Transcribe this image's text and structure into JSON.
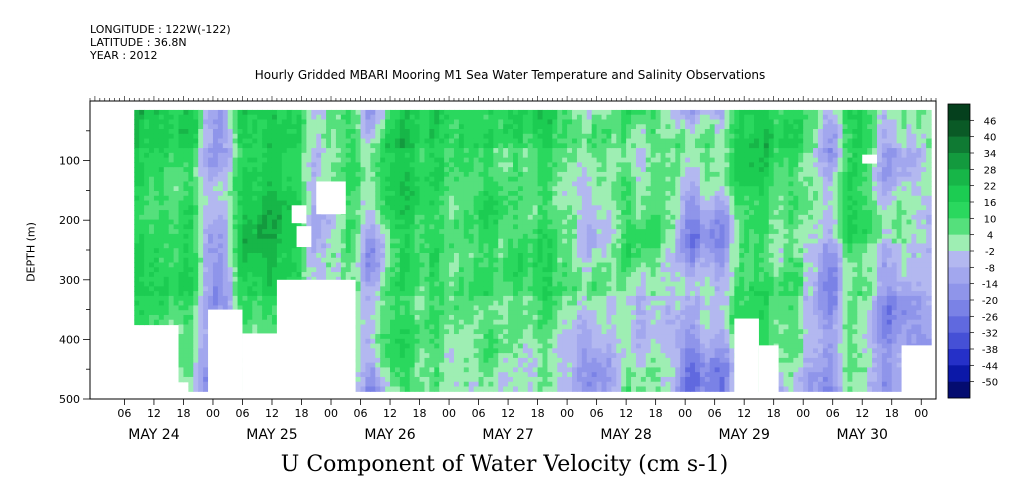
{
  "header": {
    "longitude": "LONGITUDE : 122W(-122)",
    "latitude": "LATITUDE : 36.8N",
    "year": "YEAR : 2012"
  },
  "chart_data": {
    "type": "heatmap",
    "title": "Hourly Gridded MBARI Mooring M1 Sea Water Temperature and Salinity Observations",
    "variable_label": "U Component of Water Velocity (cm s-1)",
    "ylabel": "DEPTH (m)",
    "y_axis": {
      "range": [
        500,
        0
      ],
      "reversed": true,
      "ticks": [
        100,
        200,
        300,
        400,
        500
      ]
    },
    "x_axis": {
      "start": "2012-05-23 23:00",
      "end": "2012-05-31 03:00",
      "hour_ticks": [
        "06",
        "12",
        "18",
        "00",
        "06",
        "12",
        "18",
        "00",
        "06",
        "12",
        "18",
        "00",
        "06",
        "12",
        "18",
        "00",
        "06",
        "12",
        "18",
        "00",
        "06",
        "12",
        "18",
        "00",
        "06",
        "12",
        "18",
        "00"
      ],
      "day_labels": [
        "MAY 24",
        "MAY 25",
        "MAY 26",
        "MAY 27",
        "MAY 28",
        "MAY 29",
        "MAY 30"
      ]
    },
    "colorbar": {
      "labels": [
        "46",
        "40",
        "34",
        "28",
        "22",
        "16",
        "10",
        "4",
        "-2",
        "-8",
        "-14",
        "-20",
        "-26",
        "-32",
        "-38",
        "-44",
        "-50"
      ],
      "colors": [
        "#05401d",
        "#0a5a26",
        "#0f7a33",
        "#139a3e",
        "#17b648",
        "#1ccc52",
        "#2ad85e",
        "#55e07c",
        "#9eeeb3",
        "#b3b8f0",
        "#a2a7ee",
        "#8f95ea",
        "#7a82e6",
        "#6069df",
        "#4550d6",
        "#2530c8",
        "#0b18a8",
        "#040c70"
      ]
    },
    "data_extent": {
      "time_start": "2012-05-24 08:00",
      "time_end": "2012-05-31 02:00",
      "depth_top": 15,
      "depth_bottom": 485
    },
    "gaps": [
      {
        "t0": 24,
        "t1": 31,
        "d0": 350,
        "d1": 500
      },
      {
        "t0": 31,
        "t1": 41,
        "d0": 390,
        "d1": 500
      },
      {
        "t0": 38,
        "t1": 54,
        "d0": 300,
        "d1": 500
      },
      {
        "t0": 46,
        "t1": 52,
        "d0": 135,
        "d1": 190
      },
      {
        "t0": 41,
        "t1": 44,
        "d0": 175,
        "d1": 205
      },
      {
        "t0": 42,
        "t1": 45,
        "d0": 210,
        "d1": 245
      },
      {
        "t0": 131,
        "t1": 136,
        "d0": 365,
        "d1": 490
      },
      {
        "t0": 136,
        "t1": 140,
        "d0": 410,
        "d1": 490
      },
      {
        "t0": 157,
        "t1": 160,
        "d0": 90,
        "d1": 105
      },
      {
        "t0": 165,
        "t1": 175,
        "d0": 410,
        "d1": 490
      }
    ],
    "blue_bands": [
      {
        "t": 26,
        "w": 3,
        "a": 0.85
      },
      {
        "t": 47,
        "w": 4,
        "a": 0.5
      },
      {
        "t": 58,
        "w": 3,
        "a": 0.9
      },
      {
        "t": 82,
        "w": 3,
        "a": 0.55
      },
      {
        "t": 103,
        "w": 4,
        "a": 0.85
      },
      {
        "t": 112,
        "w": 3,
        "a": 0.5
      },
      {
        "t": 122,
        "w": 3,
        "a": 1.0
      },
      {
        "t": 128,
        "w": 4,
        "a": 0.95
      },
      {
        "t": 151,
        "w": 4,
        "a": 1.0
      },
      {
        "t": 163,
        "w": 4,
        "a": 0.7
      },
      {
        "t": 172,
        "w": 3,
        "a": 0.7
      }
    ],
    "green_bands": [
      {
        "t": 35,
        "w": 4,
        "a": 0.9
      },
      {
        "t": 67,
        "w": 5,
        "a": 0.7
      },
      {
        "t": 79,
        "w": 4,
        "a": 0.55
      },
      {
        "t": 95,
        "w": 3,
        "a": 0.6
      },
      {
        "t": 118,
        "w": 2,
        "a": 0.5
      },
      {
        "t": 138,
        "w": 3,
        "a": 0.7
      },
      {
        "t": 156,
        "w": 3,
        "a": 0.6
      }
    ]
  }
}
